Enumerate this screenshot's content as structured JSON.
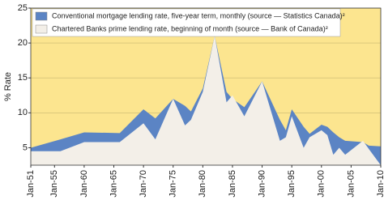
{
  "chart_data": {
    "type": "area",
    "y_label": "% Rate",
    "x": [
      1951,
      1956,
      1960,
      1966,
      1970,
      1972,
      1975,
      1977,
      1978,
      1980,
      1982,
      1984,
      1985,
      1987,
      1990,
      1993,
      1994,
      1995,
      1997,
      1998,
      2000,
      2001,
      2002,
      2003,
      2004,
      2007,
      2008,
      2010
    ],
    "series": [
      {
        "name": "Conventional mortgage lending rate, five-year term, monthly (source — Statistics Canada)²",
        "color": "#5b84c4",
        "values": [
          5.0,
          6.2,
          7.2,
          7.1,
          10.5,
          9.2,
          12.0,
          11.0,
          10.2,
          13.5,
          21.0,
          13.0,
          12.0,
          10.8,
          14.5,
          9.0,
          7.5,
          10.5,
          8.0,
          7.0,
          8.3,
          8.0,
          7.2,
          6.5,
          6.0,
          5.8,
          5.3,
          5.2
        ]
      },
      {
        "name": "Chartered Banks prime lending rate, beginning of month (source — Bank of Canada)²",
        "color": "#f3efe8",
        "values": [
          4.5,
          4.5,
          5.8,
          5.8,
          8.5,
          6.2,
          12.0,
          8.2,
          9.0,
          13.0,
          21.0,
          11.5,
          12.5,
          9.5,
          14.5,
          6.0,
          6.5,
          9.5,
          5.0,
          6.5,
          7.5,
          6.8,
          4.0,
          5.0,
          4.0,
          6.0,
          4.8,
          2.5
        ]
      }
    ],
    "xlim": [
      1951,
      2010
    ],
    "xticks": [
      {
        "value": 1951,
        "label": "Jan-51"
      },
      {
        "value": 1955,
        "label": "Jan-55"
      },
      {
        "value": 1960,
        "label": "Jan-60"
      },
      {
        "value": 1965,
        "label": "Jan-65"
      },
      {
        "value": 1970,
        "label": "Jan-70"
      },
      {
        "value": 1975,
        "label": "Jan-75"
      },
      {
        "value": 1980,
        "label": "Jan-80"
      },
      {
        "value": 1985,
        "label": "Jan-85"
      },
      {
        "value": 1990,
        "label": "Jan-90"
      },
      {
        "value": 1995,
        "label": "Jan-95"
      },
      {
        "value": 2000,
        "label": "Jan-00"
      },
      {
        "value": 2005,
        "label": "Jan-05"
      },
      {
        "value": 2010,
        "label": "Jan-10"
      }
    ],
    "ylim": [
      2.5,
      25
    ],
    "yticks": [
      5,
      10,
      15,
      20,
      25
    ],
    "grid": true,
    "background": "#fce58f",
    "legend": "top-left"
  }
}
